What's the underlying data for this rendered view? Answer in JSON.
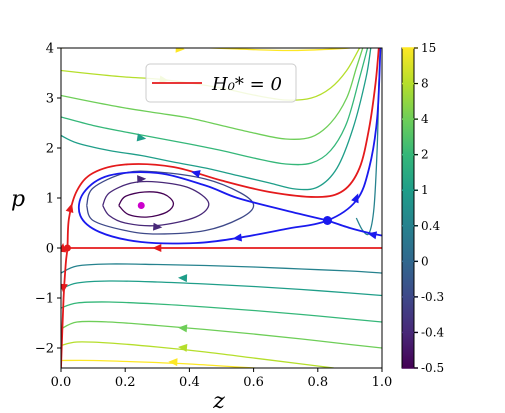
{
  "chart_data": {
    "type": "line",
    "xlabel": "z",
    "ylabel": "p",
    "xlim": [
      0.0,
      1.0
    ],
    "ylim": [
      -2.4,
      4.0
    ],
    "x_ticks": [
      0.0,
      0.2,
      0.4,
      0.6,
      0.8,
      1.0
    ],
    "x_tick_labels": [
      "0.0",
      "0.2",
      "0.4",
      "0.6",
      "0.8",
      "1.0"
    ],
    "y_ticks": [
      -2,
      -1,
      0,
      1,
      2,
      3,
      4
    ],
    "y_tick_labels": [
      "−2",
      "−1",
      "0",
      "1",
      "2",
      "3",
      "4"
    ],
    "legend": {
      "label": "H₀* = 0",
      "color": "#e41a1c",
      "placement": "top-center"
    },
    "colorbar": {
      "levels": [
        15,
        8,
        4,
        2,
        1,
        0.4,
        0,
        -0.3,
        -0.4,
        -0.5
      ],
      "tick_labels": [
        "15",
        "8",
        "4",
        "2",
        "1",
        "0.4",
        "0",
        "-0.3",
        "-0.4",
        "-0.5"
      ],
      "colors": [
        "#fde725",
        "#b5de2b",
        "#6ece58",
        "#35b779",
        "#1f9e89",
        "#26828e",
        "#31688e",
        "#3e4989",
        "#482878",
        "#440154"
      ]
    },
    "fixed_points": [
      {
        "z": 0.25,
        "p": 0.85,
        "color": "#cc00cc"
      },
      {
        "z": 0.83,
        "p": 0.55,
        "color": "#1a1aee"
      }
    ],
    "separatrix_color": "#1a1aee",
    "zero_level_color": "#e41a1c",
    "series": [
      {
        "level": 15,
        "color": "#fde725",
        "points": [
          [
            0.0,
            4.0
          ],
          [
            0.1,
            4.02
          ],
          [
            0.2,
            4.05
          ],
          [
            0.3,
            4.05
          ],
          [
            0.4,
            4.02
          ],
          [
            0.55,
            3.98
          ],
          [
            0.7,
            3.95
          ],
          [
            0.82,
            3.97
          ],
          [
            0.9,
            4.0
          ]
        ]
      },
      {
        "level": 15,
        "color": "#fde725",
        "points": [
          [
            0.0,
            -2.25
          ],
          [
            0.1,
            -2.25
          ],
          [
            0.25,
            -2.28
          ],
          [
            0.4,
            -2.32
          ],
          [
            0.55,
            -2.38
          ],
          [
            0.65,
            -2.42
          ]
        ]
      },
      {
        "level": 8,
        "color": "#b5de2b",
        "points": [
          [
            0.0,
            3.55
          ],
          [
            0.1,
            3.48
          ],
          [
            0.2,
            3.42
          ],
          [
            0.3,
            3.38
          ],
          [
            0.4,
            3.3
          ],
          [
            0.5,
            3.2
          ],
          [
            0.6,
            3.06
          ],
          [
            0.7,
            2.96
          ],
          [
            0.78,
            3.0
          ],
          [
            0.84,
            3.2
          ],
          [
            0.89,
            3.55
          ],
          [
            0.93,
            4.0
          ]
        ]
      },
      {
        "level": 8,
        "color": "#b5de2b",
        "points": [
          [
            0.0,
            -1.95
          ],
          [
            0.05,
            -1.88
          ],
          [
            0.15,
            -1.9
          ],
          [
            0.3,
            -1.98
          ],
          [
            0.45,
            -2.08
          ],
          [
            0.6,
            -2.2
          ],
          [
            0.75,
            -2.32
          ],
          [
            0.85,
            -2.4
          ]
        ]
      },
      {
        "level": 4,
        "color": "#6ece58",
        "points": [
          [
            0.0,
            3.05
          ],
          [
            0.1,
            2.92
          ],
          [
            0.2,
            2.8
          ],
          [
            0.3,
            2.7
          ],
          [
            0.4,
            2.6
          ],
          [
            0.5,
            2.45
          ],
          [
            0.6,
            2.3
          ],
          [
            0.7,
            2.18
          ],
          [
            0.78,
            2.22
          ],
          [
            0.84,
            2.5
          ],
          [
            0.89,
            3.0
          ],
          [
            0.92,
            3.6
          ],
          [
            0.94,
            4.0
          ]
        ]
      },
      {
        "level": 4,
        "color": "#6ece58",
        "points": [
          [
            0.0,
            -1.62
          ],
          [
            0.05,
            -1.48
          ],
          [
            0.15,
            -1.48
          ],
          [
            0.3,
            -1.55
          ],
          [
            0.45,
            -1.63
          ],
          [
            0.6,
            -1.72
          ],
          [
            0.75,
            -1.82
          ],
          [
            0.9,
            -1.93
          ],
          [
            1.0,
            -2.0
          ]
        ]
      },
      {
        "level": 2,
        "color": "#35b779",
        "points": [
          [
            0.0,
            2.62
          ],
          [
            0.1,
            2.45
          ],
          [
            0.2,
            2.32
          ],
          [
            0.3,
            2.2
          ],
          [
            0.4,
            2.08
          ],
          [
            0.5,
            1.95
          ],
          [
            0.6,
            1.8
          ],
          [
            0.7,
            1.68
          ],
          [
            0.78,
            1.7
          ],
          [
            0.84,
            1.95
          ],
          [
            0.89,
            2.5
          ],
          [
            0.93,
            3.4
          ],
          [
            0.955,
            4.0
          ]
        ]
      },
      {
        "level": 2,
        "color": "#35b779",
        "points": [
          [
            0.0,
            -1.2
          ],
          [
            0.05,
            -1.1
          ],
          [
            0.15,
            -1.08
          ],
          [
            0.3,
            -1.12
          ],
          [
            0.45,
            -1.18
          ],
          [
            0.6,
            -1.25
          ],
          [
            0.75,
            -1.33
          ],
          [
            0.9,
            -1.42
          ],
          [
            1.0,
            -1.48
          ]
        ]
      },
      {
        "level": 1,
        "color": "#1f9e89",
        "points": [
          [
            0.0,
            2.25
          ],
          [
            0.05,
            2.1
          ],
          [
            0.15,
            1.95
          ],
          [
            0.25,
            1.85
          ],
          [
            0.35,
            1.72
          ],
          [
            0.45,
            1.6
          ],
          [
            0.55,
            1.45
          ],
          [
            0.65,
            1.3
          ],
          [
            0.73,
            1.18
          ],
          [
            0.8,
            1.22
          ],
          [
            0.86,
            1.6
          ],
          [
            0.91,
            2.4
          ],
          [
            0.95,
            3.4
          ],
          [
            0.965,
            4.0
          ]
        ]
      },
      {
        "level": 1,
        "color": "#1f9e89",
        "points": [
          [
            0.0,
            -0.82
          ],
          [
            0.05,
            -0.7
          ],
          [
            0.15,
            -0.66
          ],
          [
            0.3,
            -0.68
          ],
          [
            0.45,
            -0.72
          ],
          [
            0.6,
            -0.77
          ],
          [
            0.75,
            -0.83
          ],
          [
            0.9,
            -0.9
          ],
          [
            1.0,
            -0.95
          ]
        ]
      },
      {
        "level": 0.4,
        "color": "#26828e",
        "points": [
          [
            0.0,
            -0.5
          ],
          [
            0.05,
            -0.36
          ],
          [
            0.15,
            -0.32
          ],
          [
            0.3,
            -0.33
          ],
          [
            0.45,
            -0.35
          ],
          [
            0.6,
            -0.38
          ],
          [
            0.75,
            -0.42
          ],
          [
            0.9,
            -0.46
          ],
          [
            1.0,
            -0.5
          ]
        ]
      },
      {
        "level": 0.4,
        "color": "#26828e",
        "points": [
          [
            0.92,
            0.6
          ],
          [
            0.94,
            0.35
          ],
          [
            0.96,
            0.3
          ],
          [
            0.975,
            0.8
          ],
          [
            0.985,
            2.0
          ],
          [
            0.99,
            3.2
          ],
          [
            0.995,
            4.0
          ]
        ]
      },
      {
        "level": -0.3,
        "color": "#3e4989",
        "points": [
          [
            0.08,
            0.85
          ],
          [
            0.1,
            1.2
          ],
          [
            0.2,
            1.5
          ],
          [
            0.3,
            1.52
          ],
          [
            0.45,
            1.38
          ],
          [
            0.56,
            1.1
          ],
          [
            0.6,
            0.85
          ],
          [
            0.56,
            0.6
          ],
          [
            0.45,
            0.35
          ],
          [
            0.3,
            0.28
          ],
          [
            0.2,
            0.35
          ],
          [
            0.1,
            0.55
          ],
          [
            0.08,
            0.85
          ]
        ]
      },
      {
        "level": -0.4,
        "color": "#482878",
        "points": [
          [
            0.13,
            0.85
          ],
          [
            0.15,
            1.1
          ],
          [
            0.22,
            1.3
          ],
          [
            0.3,
            1.32
          ],
          [
            0.4,
            1.2
          ],
          [
            0.46,
            0.9
          ],
          [
            0.42,
            0.62
          ],
          [
            0.3,
            0.45
          ],
          [
            0.2,
            0.5
          ],
          [
            0.15,
            0.65
          ],
          [
            0.13,
            0.85
          ]
        ]
      },
      {
        "level": -0.5,
        "color": "#440154",
        "points": [
          [
            0.18,
            0.85
          ],
          [
            0.2,
            1.03
          ],
          [
            0.26,
            1.12
          ],
          [
            0.32,
            1.08
          ],
          [
            0.35,
            0.9
          ],
          [
            0.33,
            0.72
          ],
          [
            0.27,
            0.62
          ],
          [
            0.21,
            0.67
          ],
          [
            0.18,
            0.85
          ]
        ]
      },
      {
        "level": 0,
        "color": "#1a1aee",
        "role": "separatrix",
        "points": [
          [
            0.83,
            0.55
          ],
          [
            0.7,
            0.75
          ],
          [
            0.55,
            1.0
          ],
          [
            0.45,
            1.25
          ],
          [
            0.3,
            1.5
          ],
          [
            0.15,
            1.45
          ],
          [
            0.07,
            1.1
          ],
          [
            0.06,
            0.65
          ],
          [
            0.12,
            0.32
          ],
          [
            0.25,
            0.12
          ],
          [
            0.42,
            0.1
          ],
          [
            0.55,
            0.2
          ],
          [
            0.7,
            0.38
          ],
          [
            0.83,
            0.55
          ],
          [
            0.92,
            0.95
          ],
          [
            0.96,
            1.6
          ],
          [
            0.985,
            2.6
          ],
          [
            0.995,
            4.0
          ]
        ]
      },
      {
        "level": 0,
        "color": "#1a1aee",
        "role": "separatrix",
        "points": [
          [
            0.83,
            0.55
          ],
          [
            0.9,
            0.4
          ],
          [
            0.96,
            0.3
          ],
          [
            1.0,
            0.25
          ]
        ]
      },
      {
        "level": 0,
        "color": "#e41a1c",
        "role": "zero-level",
        "points": [
          [
            0.0,
            0.0
          ],
          [
            1.0,
            0.0
          ]
        ]
      },
      {
        "level": 0,
        "color": "#e41a1c",
        "role": "zero-level",
        "points": [
          [
            0.0,
            -2.4
          ],
          [
            0.008,
            -1.0
          ],
          [
            0.015,
            -0.3
          ],
          [
            0.02,
            0.0
          ],
          [
            0.025,
            0.6
          ],
          [
            0.05,
            1.15
          ],
          [
            0.1,
            1.5
          ],
          [
            0.2,
            1.67
          ],
          [
            0.35,
            1.62
          ],
          [
            0.5,
            1.35
          ],
          [
            0.65,
            1.12
          ],
          [
            0.8,
            1.02
          ],
          [
            0.88,
            1.15
          ],
          [
            0.93,
            1.6
          ],
          [
            0.96,
            2.4
          ],
          [
            0.98,
            3.3
          ],
          [
            0.99,
            4.0
          ]
        ]
      }
    ],
    "arrows": [
      {
        "z": 0.37,
        "p": 3.98,
        "dir": 1,
        "color": "#fde725"
      },
      {
        "z": 0.35,
        "p": -2.28,
        "dir": -1,
        "color": "#fde725"
      },
      {
        "z": 0.32,
        "p": 3.36,
        "dir": 1,
        "color": "#b5de2b"
      },
      {
        "z": 0.38,
        "p": -1.99,
        "dir": -1,
        "color": "#b5de2b"
      },
      {
        "z": 0.38,
        "p": -1.6,
        "dir": -1,
        "color": "#6ece58"
      },
      {
        "z": 0.25,
        "p": 2.2,
        "dir": 1,
        "color": "#1f9e89"
      },
      {
        "z": 0.38,
        "p": -0.6,
        "dir": -1,
        "color": "#1f9e89"
      },
      {
        "z": 0.25,
        "p": 1.38,
        "dir": 1,
        "color": "#482878"
      },
      {
        "z": 0.3,
        "p": 0.42,
        "dir": -1,
        "color": "#482878"
      },
      {
        "z": 0.42,
        "p": 1.5,
        "dir": 1,
        "color": "#1a1aee"
      },
      {
        "z": 0.55,
        "p": 0.2,
        "dir": -1,
        "color": "#1a1aee"
      },
      {
        "z": 0.97,
        "p": 0.27,
        "dir": -1,
        "color": "#1a1aee"
      },
      {
        "z": 0.92,
        "p": 1.0,
        "dir": 1,
        "color": "#1a1aee"
      },
      {
        "z": 0.3,
        "p": 0.0,
        "dir": -1,
        "color": "#e41a1c"
      },
      {
        "z": 0.005,
        "p": 0.0,
        "dir": 1,
        "color": "#e41a1c"
      },
      {
        "z": 0.008,
        "p": -0.8,
        "dir": -1,
        "color": "#e41a1c"
      },
      {
        "z": 0.03,
        "p": 0.8,
        "dir": 1,
        "color": "#e41a1c"
      }
    ]
  }
}
